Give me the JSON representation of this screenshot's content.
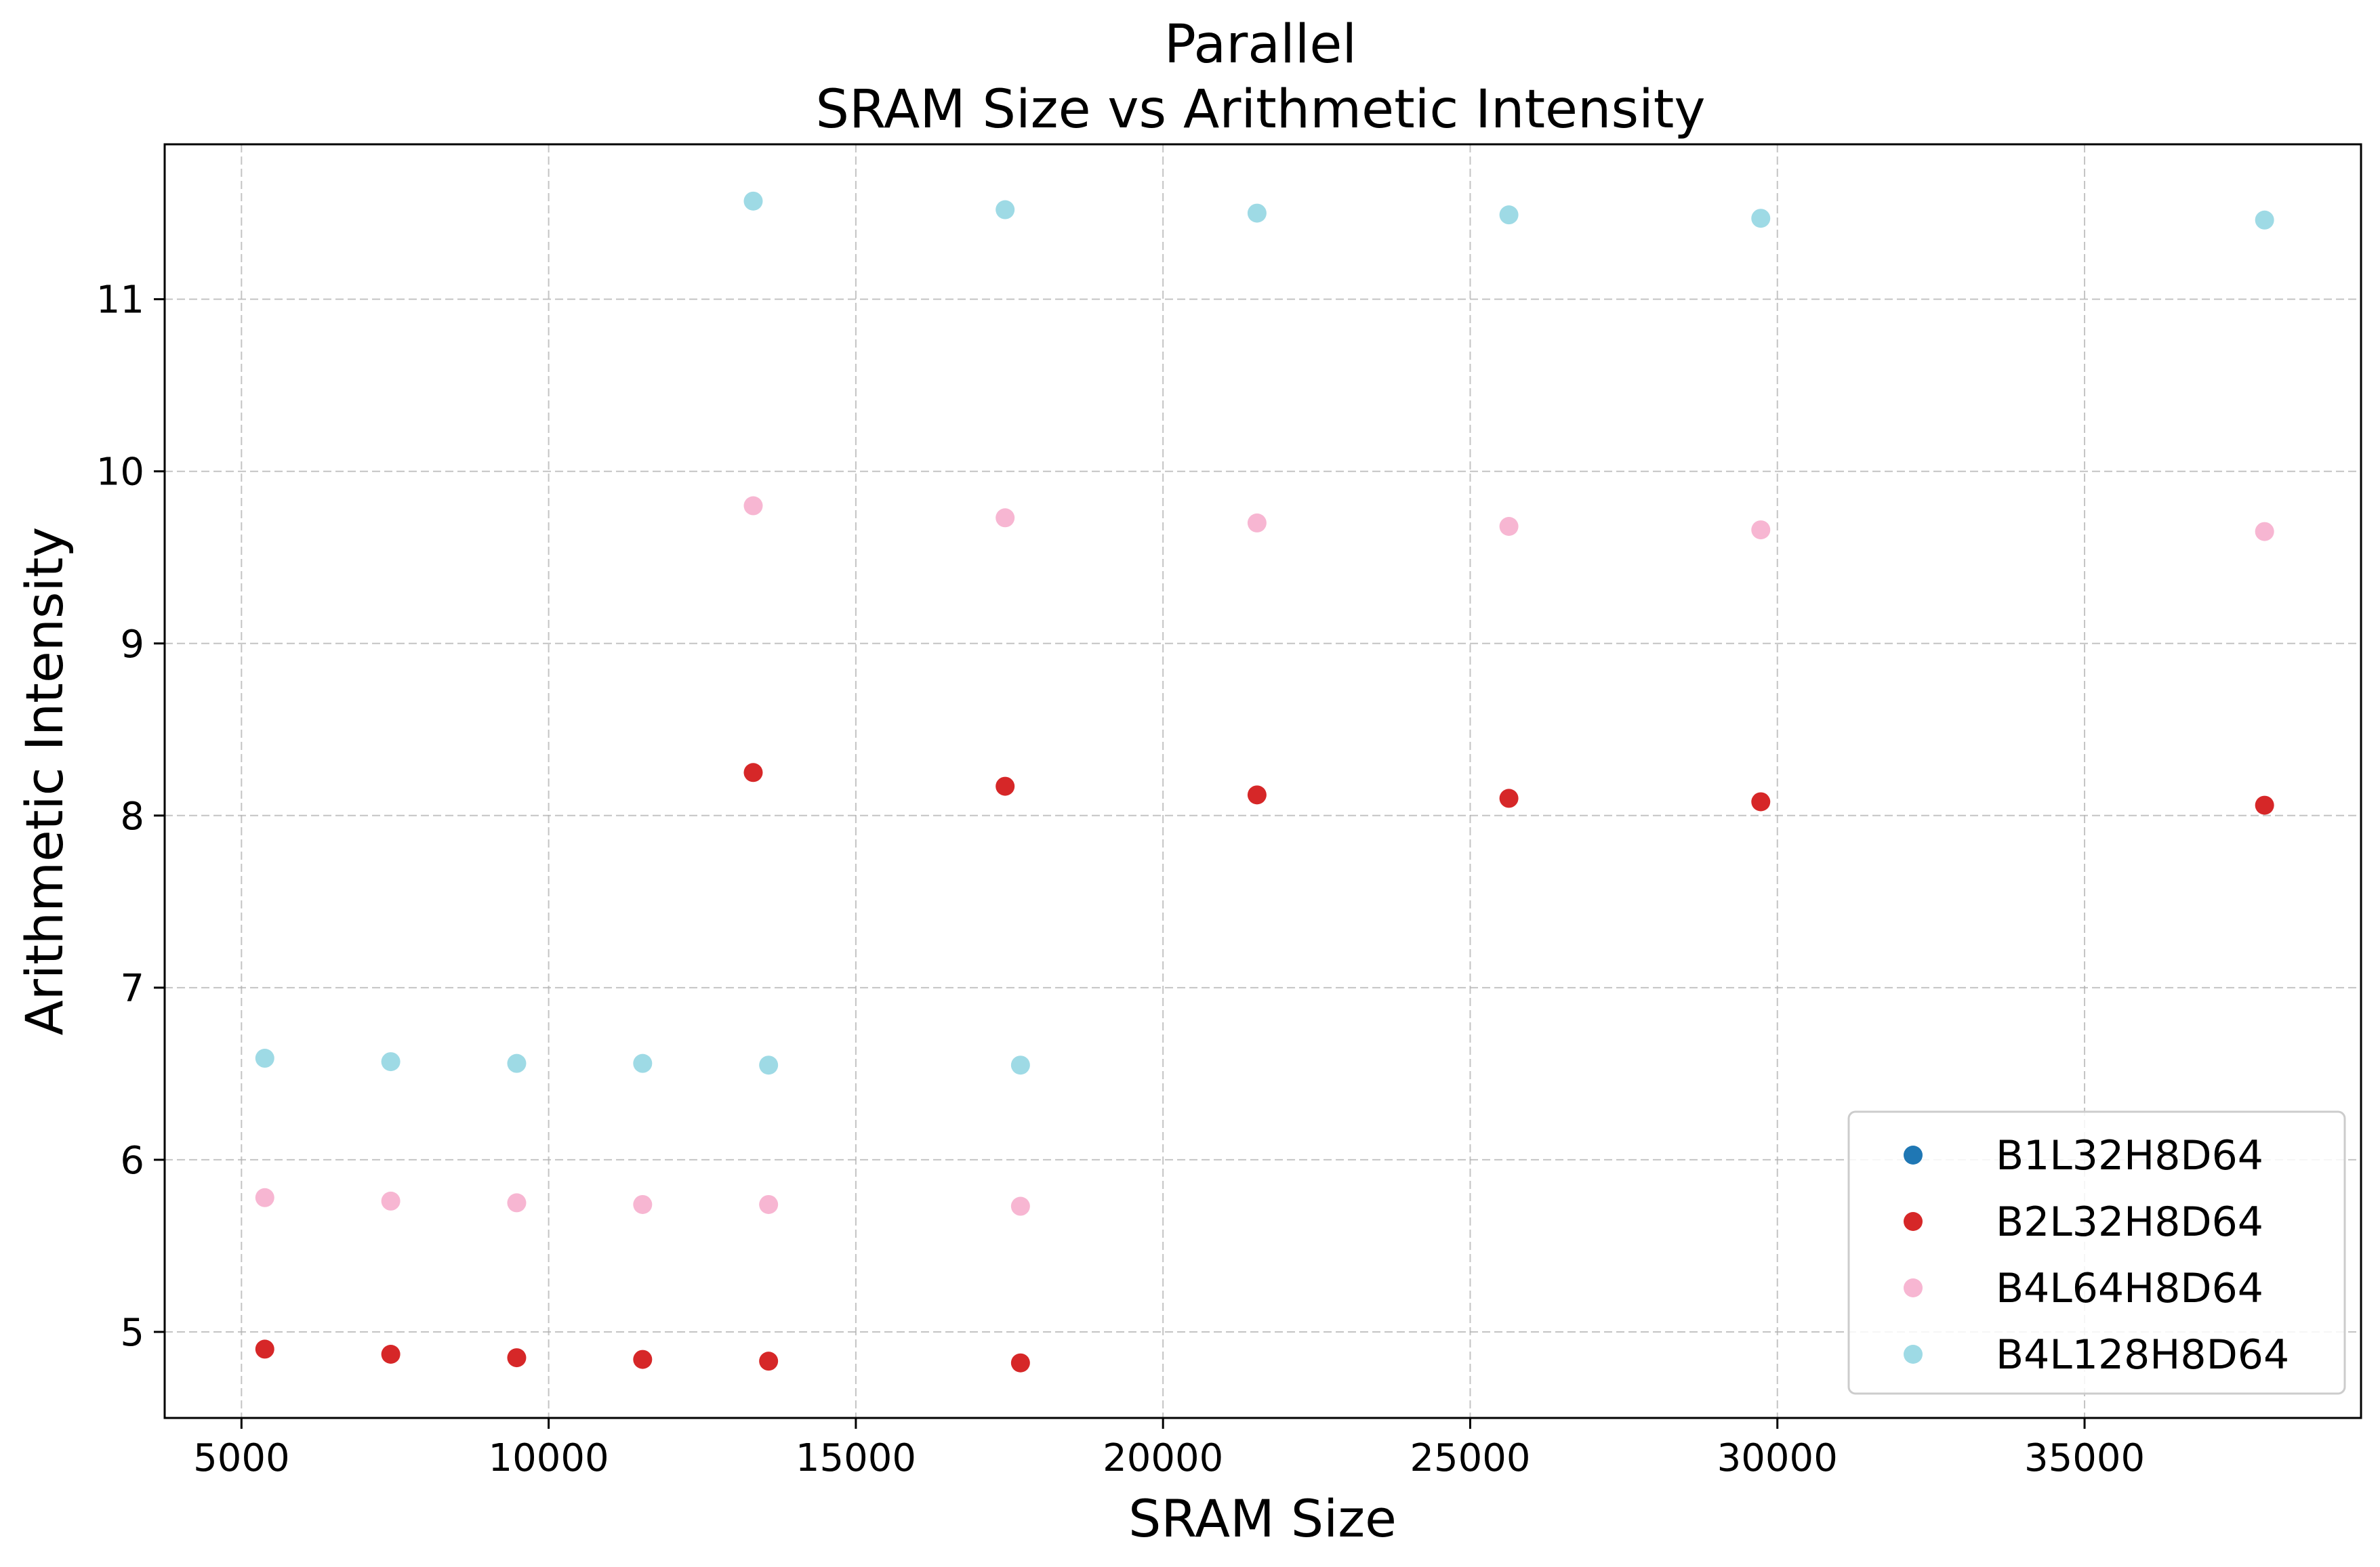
{
  "chart_data": {
    "type": "scatter",
    "title": "Parallel",
    "subtitle": "SRAM Size vs Arithmetic Intensity",
    "xlabel": "SRAM Size",
    "ylabel": "Arithmetic Intensity",
    "xlim": [
      3750,
      39500
    ],
    "ylim": [
      4.5,
      11.9
    ],
    "xticks": [
      5000,
      10000,
      15000,
      20000,
      25000,
      30000,
      35000
    ],
    "yticks": [
      5,
      6,
      7,
      8,
      9,
      10,
      11
    ],
    "grid": true,
    "legend_position": "lower-right",
    "series": [
      {
        "name": "B1L32H8D64",
        "color": "#1f77b4",
        "points": []
      },
      {
        "name": "B2L32H8D64",
        "color": "#d62728",
        "points": [
          [
            5380,
            4.9
          ],
          [
            7430,
            4.87
          ],
          [
            9480,
            4.85
          ],
          [
            11530,
            4.84
          ],
          [
            13580,
            4.83
          ],
          [
            17680,
            4.82
          ],
          [
            13330,
            8.25
          ],
          [
            17430,
            8.17
          ],
          [
            21530,
            8.12
          ],
          [
            25630,
            8.1
          ],
          [
            29730,
            8.08
          ],
          [
            37930,
            8.06
          ]
        ]
      },
      {
        "name": "B4L64H8D64",
        "color": "#f7b6d2",
        "points": [
          [
            5380,
            5.78
          ],
          [
            7430,
            5.76
          ],
          [
            9480,
            5.75
          ],
          [
            11530,
            5.74
          ],
          [
            13580,
            5.74
          ],
          [
            17680,
            5.73
          ],
          [
            13330,
            9.8
          ],
          [
            17430,
            9.73
          ],
          [
            21530,
            9.7
          ],
          [
            25630,
            9.68
          ],
          [
            29730,
            9.66
          ],
          [
            37930,
            9.65
          ]
        ]
      },
      {
        "name": "B4L128H8D64",
        "color": "#9edae5",
        "points": [
          [
            5380,
            6.59
          ],
          [
            7430,
            6.57
          ],
          [
            9480,
            6.56
          ],
          [
            11530,
            6.56
          ],
          [
            13580,
            6.55
          ],
          [
            17680,
            6.55
          ],
          [
            13330,
            11.57
          ],
          [
            17430,
            11.52
          ],
          [
            21530,
            11.5
          ],
          [
            25630,
            11.49
          ],
          [
            29730,
            11.47
          ],
          [
            37930,
            11.46
          ]
        ]
      }
    ]
  }
}
